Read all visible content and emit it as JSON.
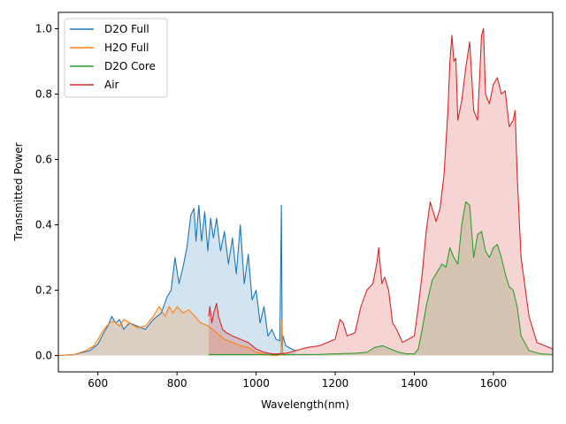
{
  "chart_data": {
    "type": "area",
    "xlabel": "Wavelength(nm)",
    "ylabel": "Transmitted Power",
    "xlim": [
      500,
      1750
    ],
    "ylim": [
      -0.05,
      1.05
    ],
    "x_ticks": [
      600,
      800,
      1000,
      1200,
      1400,
      1600
    ],
    "x_tick_labels": [
      "600",
      "800",
      "1000",
      "1200",
      "1400",
      "1600"
    ],
    "y_ticks": [
      0.0,
      0.2,
      0.4,
      0.6,
      0.8,
      1.0
    ],
    "y_tick_labels": [
      "0.0",
      "0.2",
      "0.4",
      "0.6",
      "0.8",
      "1.0"
    ],
    "grid": false,
    "legend_position": "top-left",
    "series": [
      {
        "name": "D2O Full",
        "color": "#1f77b4",
        "x": [
          500,
          540,
          580,
          600,
          615,
          625,
          635,
          645,
          655,
          665,
          680,
          700,
          720,
          740,
          760,
          775,
          785,
          795,
          805,
          815,
          825,
          835,
          843,
          848,
          855,
          862,
          870,
          878,
          885,
          892,
          900,
          910,
          920,
          930,
          940,
          950,
          960,
          970,
          980,
          990,
          1000,
          1010,
          1020,
          1030,
          1040,
          1050,
          1060,
          1064,
          1066,
          1068,
          1075,
          1090,
          1100
        ],
        "values": [
          0.0,
          0.003,
          0.015,
          0.035,
          0.07,
          0.09,
          0.12,
          0.1,
          0.11,
          0.08,
          0.1,
          0.09,
          0.08,
          0.11,
          0.13,
          0.18,
          0.2,
          0.3,
          0.22,
          0.27,
          0.33,
          0.43,
          0.45,
          0.35,
          0.46,
          0.35,
          0.44,
          0.32,
          0.42,
          0.36,
          0.42,
          0.32,
          0.38,
          0.28,
          0.36,
          0.25,
          0.4,
          0.22,
          0.31,
          0.17,
          0.2,
          0.1,
          0.15,
          0.06,
          0.08,
          0.05,
          0.045,
          0.46,
          0.03,
          0.06,
          0.03,
          0.02,
          0.015
        ]
      },
      {
        "name": "H2O Full",
        "color": "#ff7f0e",
        "x": [
          500,
          540,
          570,
          590,
          600,
          615,
          630,
          640,
          655,
          665,
          680,
          700,
          720,
          740,
          755,
          770,
          780,
          790,
          800,
          815,
          830,
          845,
          860,
          880,
          900,
          920,
          940,
          960,
          980,
          1000,
          1020,
          1040,
          1055,
          1063,
          1065,
          1067,
          1075
        ],
        "values": [
          0.0,
          0.003,
          0.015,
          0.03,
          0.05,
          0.08,
          0.1,
          0.105,
          0.09,
          0.11,
          0.1,
          0.085,
          0.09,
          0.12,
          0.15,
          0.12,
          0.15,
          0.13,
          0.15,
          0.13,
          0.14,
          0.12,
          0.1,
          0.09,
          0.07,
          0.05,
          0.04,
          0.03,
          0.025,
          0.01,
          0.005,
          0.0,
          0.0,
          0.01,
          0.11,
          0.01,
          0.0
        ]
      },
      {
        "name": "D2O Core",
        "color": "#2ca02c",
        "x": [
          880,
          950,
          1050,
          1150,
          1200,
          1250,
          1280,
          1300,
          1320,
          1340,
          1360,
          1380,
          1400,
          1410,
          1420,
          1430,
          1445,
          1460,
          1470,
          1480,
          1490,
          1500,
          1510,
          1520,
          1530,
          1540,
          1550,
          1560,
          1570,
          1580,
          1590,
          1600,
          1610,
          1620,
          1630,
          1640,
          1650,
          1660,
          1670,
          1690,
          1720,
          1750
        ],
        "values": [
          0.003,
          0.003,
          0.003,
          0.003,
          0.005,
          0.007,
          0.01,
          0.025,
          0.03,
          0.02,
          0.01,
          0.005,
          0.005,
          0.02,
          0.08,
          0.15,
          0.23,
          0.26,
          0.28,
          0.27,
          0.33,
          0.3,
          0.28,
          0.4,
          0.47,
          0.46,
          0.3,
          0.37,
          0.38,
          0.32,
          0.3,
          0.33,
          0.34,
          0.3,
          0.25,
          0.21,
          0.2,
          0.15,
          0.06,
          0.015,
          0.005,
          0.003
        ]
      },
      {
        "name": "Air",
        "color": "#d62728",
        "x": [
          880,
          883,
          888,
          893,
          900,
          905,
          910,
          915,
          925,
          940,
          960,
          980,
          1000,
          1020,
          1040,
          1060,
          1080,
          1100,
          1130,
          1160,
          1180,
          1200,
          1212,
          1220,
          1230,
          1250,
          1265,
          1280,
          1295,
          1305,
          1310,
          1318,
          1325,
          1335,
          1345,
          1355,
          1370,
          1385,
          1400,
          1410,
          1420,
          1430,
          1440,
          1448,
          1455,
          1465,
          1475,
          1485,
          1490,
          1495,
          1500,
          1505,
          1510,
          1520,
          1530,
          1540,
          1550,
          1560,
          1565,
          1570,
          1575,
          1580,
          1590,
          1600,
          1610,
          1620,
          1630,
          1640,
          1650,
          1655,
          1660,
          1670,
          1690,
          1710,
          1730,
          1750
        ],
        "values": [
          0.12,
          0.15,
          0.1,
          0.13,
          0.16,
          0.12,
          0.1,
          0.08,
          0.07,
          0.06,
          0.05,
          0.04,
          0.02,
          0.01,
          0.005,
          0.005,
          0.008,
          0.015,
          0.025,
          0.03,
          0.04,
          0.05,
          0.11,
          0.1,
          0.06,
          0.07,
          0.15,
          0.2,
          0.22,
          0.28,
          0.33,
          0.22,
          0.24,
          0.2,
          0.1,
          0.08,
          0.04,
          0.05,
          0.06,
          0.15,
          0.25,
          0.38,
          0.47,
          0.44,
          0.41,
          0.45,
          0.55,
          0.75,
          0.9,
          0.98,
          0.9,
          0.91,
          0.72,
          0.78,
          0.88,
          0.96,
          0.75,
          0.72,
          0.85,
          0.98,
          1.0,
          0.8,
          0.77,
          0.83,
          0.85,
          0.8,
          0.81,
          0.7,
          0.72,
          0.75,
          0.55,
          0.3,
          0.12,
          0.04,
          0.03,
          0.02
        ]
      }
    ]
  }
}
